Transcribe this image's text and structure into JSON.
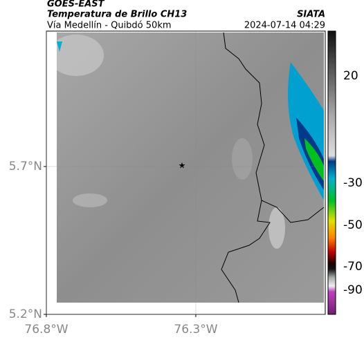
{
  "header": {
    "source": "GOES-EAST",
    "title": "Temperatura de Brillo CH13",
    "subtitle": "Vía Medellín - Quibdó 50km",
    "organization": "SIATA",
    "datetime": "2024-07-14 04:29"
  },
  "map": {
    "xlim": [
      -76.8,
      -75.867
    ],
    "ylim": [
      5.2,
      6.158
    ],
    "xticks": [
      {
        "value": -76.8,
        "label": "76.8°W"
      },
      {
        "value": -76.3,
        "label": "76.3°W"
      }
    ],
    "yticks": [
      {
        "value": 5.2,
        "label": "5.2°N"
      },
      {
        "value": 5.7,
        "label": "5.7°N"
      }
    ],
    "grid": true
  },
  "colorbar": {
    "ticks": [
      20,
      -30,
      -50,
      -70,
      -90
    ]
  }
}
